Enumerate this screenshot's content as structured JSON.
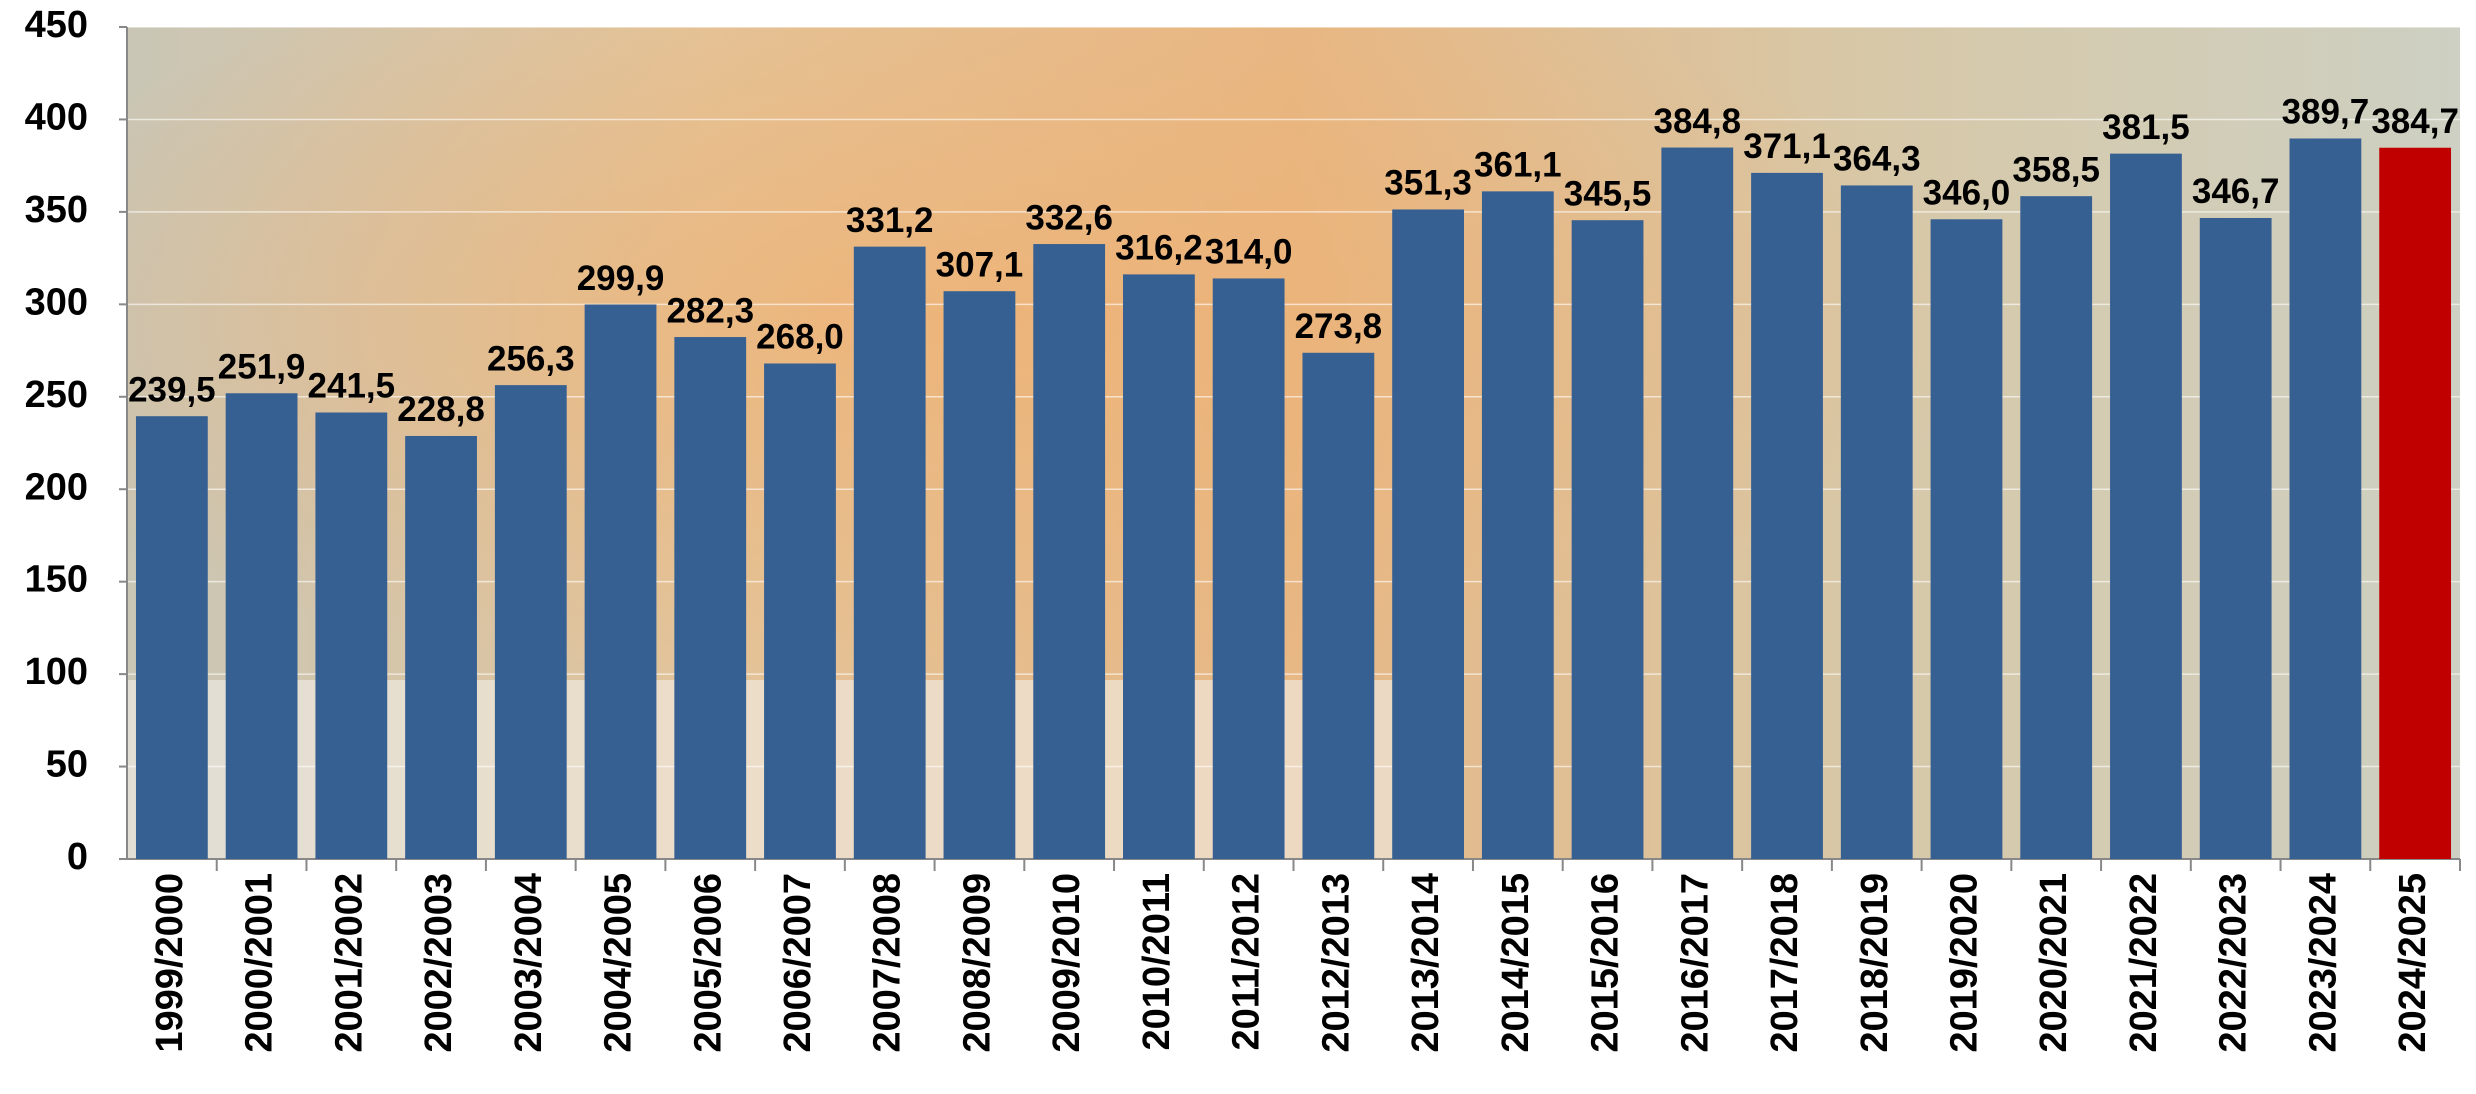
{
  "chart_data": {
    "type": "bar",
    "categories": [
      "1999/2000",
      "2000/2001",
      "2001/2002",
      "2002/2003",
      "2003/2004",
      "2004/2005",
      "2005/2006",
      "2006/2007",
      "2007/2008",
      "2008/2009",
      "2009/2010",
      "2010/2011",
      "2011/2012",
      "2012/2013",
      "2013/2014",
      "2014/2015",
      "2015/2016",
      "2016/2017",
      "2017/2018",
      "2018/2019",
      "2019/2020",
      "2020/2021",
      "2021/2022",
      "2022/2023",
      "2023/2024",
      "2024/2025"
    ],
    "values": [
      239.5,
      251.9,
      241.5,
      228.8,
      256.3,
      299.9,
      282.3,
      268.0,
      331.2,
      307.1,
      332.6,
      316.2,
      314.0,
      273.8,
      351.3,
      361.1,
      345.5,
      384.8,
      371.1,
      364.3,
      346.0,
      358.5,
      381.5,
      346.7,
      389.7,
      384.7
    ],
    "value_labels": [
      "239,5",
      "251,9",
      "241,5",
      "228,8",
      "256,3",
      "299,9",
      "282,3",
      "268,0",
      "331,2",
      "307,1",
      "332,6",
      "316,2",
      "314,0",
      "273,8",
      "351,3",
      "361,1",
      "345,5",
      "384,8",
      "371,1",
      "364,3",
      "346,0",
      "358,5",
      "381,5",
      "346,7",
      "389,7",
      "384,7"
    ],
    "colors": [
      "#365f92",
      "#365f92",
      "#365f92",
      "#365f92",
      "#365f92",
      "#365f92",
      "#365f92",
      "#365f92",
      "#365f92",
      "#365f92",
      "#365f92",
      "#365f92",
      "#365f92",
      "#365f92",
      "#365f92",
      "#365f92",
      "#365f92",
      "#365f92",
      "#365f92",
      "#365f92",
      "#365f92",
      "#365f92",
      "#365f92",
      "#365f92",
      "#365f92",
      "#c00000"
    ],
    "ylim": [
      0,
      450
    ],
    "yticks": [
      0,
      50,
      100,
      150,
      200,
      250,
      300,
      350,
      400,
      450
    ],
    "grid": true
  }
}
